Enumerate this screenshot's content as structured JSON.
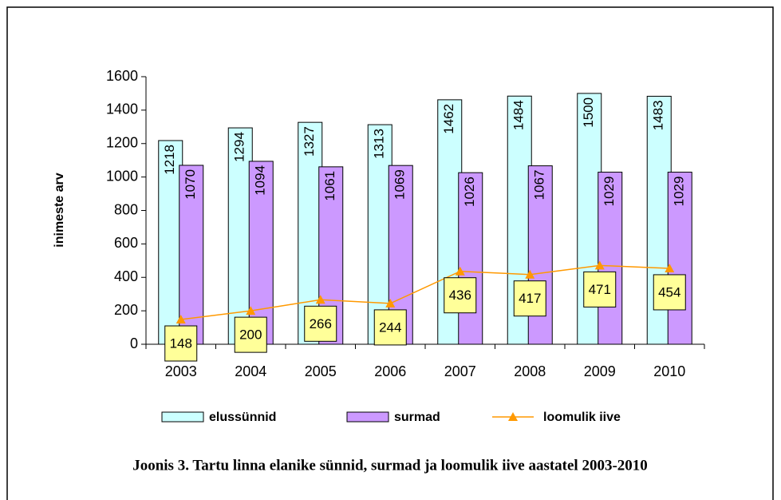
{
  "chart_data": {
    "type": "bar",
    "caption": "Joonis 3. Tartu linna elanike sünnid, surmad ja loomulik iive aastatel 2003-2010",
    "y_label": "inimeste arv",
    "categories": [
      "2003",
      "2004",
      "2005",
      "2006",
      "2007",
      "2008",
      "2009",
      "2010"
    ],
    "series": [
      {
        "name": "elussünnid",
        "type": "bar",
        "color": "#ccffff",
        "values": [
          1218,
          1294,
          1327,
          1313,
          1462,
          1484,
          1500,
          1483
        ]
      },
      {
        "name": "surmad",
        "type": "bar",
        "color": "#cc99ff",
        "values": [
          1070,
          1094,
          1061,
          1069,
          1026,
          1067,
          1029,
          1029
        ]
      },
      {
        "name": "loomulik iive",
        "type": "line",
        "color": "#ff9900",
        "values": [
          148,
          200,
          266,
          244,
          436,
          417,
          471,
          454
        ]
      }
    ],
    "ylim": [
      0,
      1600
    ],
    "yticks": [
      0,
      200,
      400,
      600,
      800,
      1000,
      1200,
      1400,
      1600
    ],
    "legend": "bottom",
    "label_box_color": "#ffff99"
  }
}
